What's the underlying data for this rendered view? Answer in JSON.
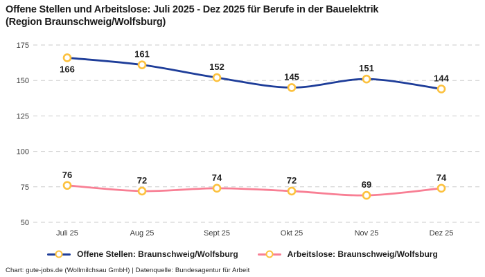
{
  "title": {
    "line1": "Offene Stellen und Arbeitslose: Juli 2025 - Dez 2025 für Berufe in der Bauelektrik",
    "line2": "(Region Braunschweig/Wolfsburg)"
  },
  "footer": {
    "text": "Chart: gute-jobs.de (Wollmilchsau GmbH) | Datenquelle: Bundesagentur für Arbeit"
  },
  "colors": {
    "grid": "#cbcbcb",
    "axis_text": "#3c3c3c",
    "value_label_text": "#1f1f1f",
    "marker_ring": "#fcc13e",
    "marker_fill": "#ffffff",
    "background": "#ffffff"
  },
  "chart_data": {
    "type": "line",
    "title": "Offene Stellen und Arbeitslose: Juli 2025 - Dez 2025 für Berufe in der Bauelektrik (Region Braunschweig/Wolfsburg)",
    "categories": [
      "Juli 25",
      "Aug 25",
      "Sept 25",
      "Okt 25",
      "Nov 25",
      "Dez 25"
    ],
    "yticks": [
      50,
      75,
      100,
      125,
      150,
      175
    ],
    "ylim": [
      50,
      175
    ],
    "grid": "horizontal-dashed",
    "legend_position": "bottom",
    "line_style": "smooth",
    "series": [
      {
        "name": "Offene Stellen: Braunschweig/Wolfsburg",
        "color": "#1e3d99",
        "values": [
          166,
          161,
          152,
          145,
          151,
          144
        ],
        "labels_below": [
          0
        ]
      },
      {
        "name": "Arbeitslose: Braunschweig/Wolfsburg",
        "color": "#f87f94",
        "values": [
          76,
          72,
          74,
          72,
          69,
          74
        ],
        "labels_below": []
      }
    ]
  }
}
